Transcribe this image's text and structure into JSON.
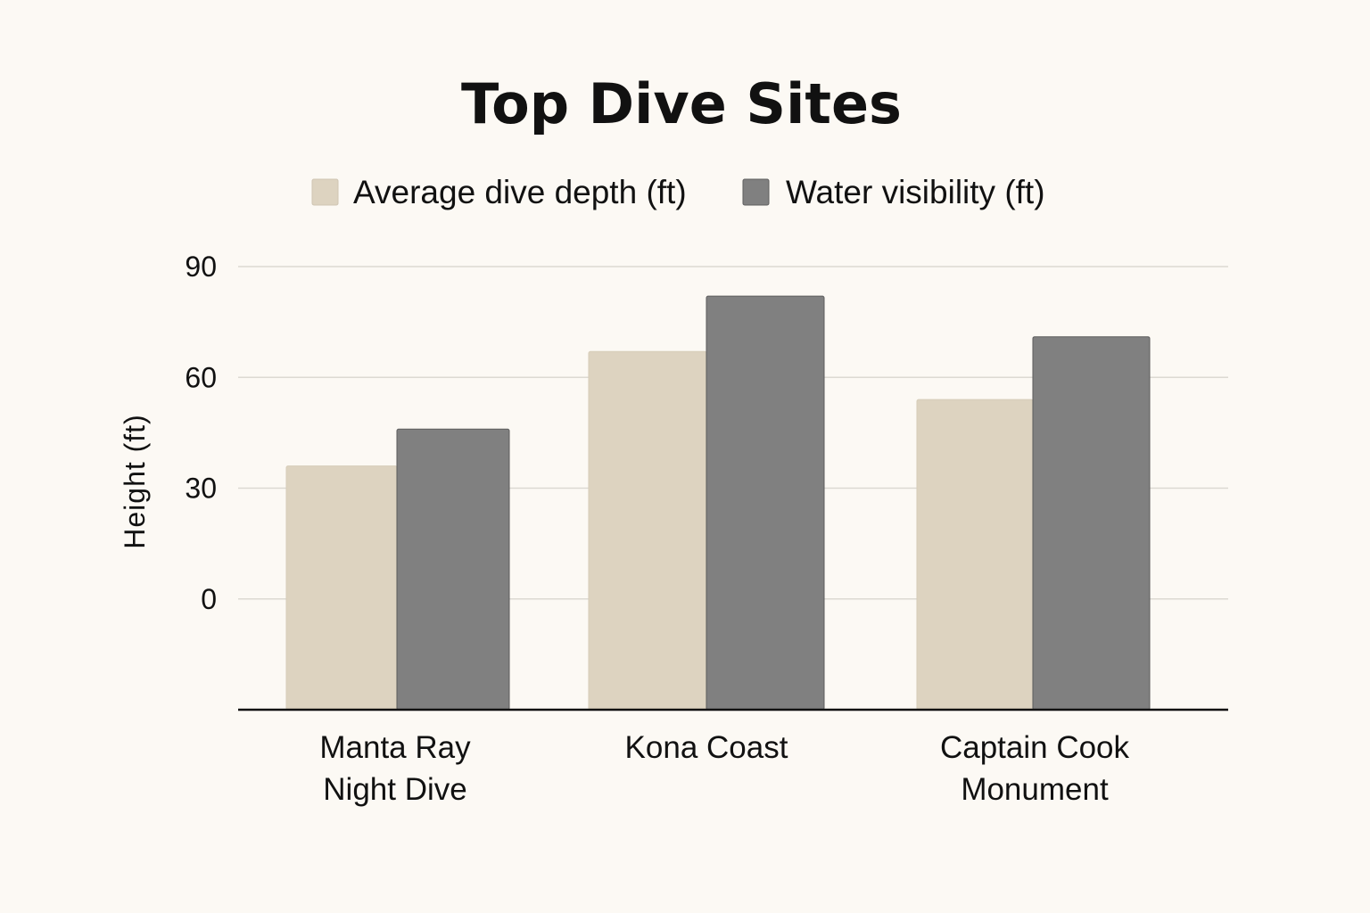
{
  "chart_data": {
    "type": "bar",
    "title": "Top Dive Sites",
    "ylabel": "Height (ft)",
    "xlabel": "",
    "categories": [
      [
        "Manta Ray",
        "Night Dive"
      ],
      [
        "Kona Coast"
      ],
      [
        "Captain Cook",
        "Monument"
      ]
    ],
    "series": [
      {
        "name": "Average dive depth (ft)",
        "color": "#ddd3c0",
        "values": [
          36,
          67,
          54
        ]
      },
      {
        "name": "Water visibility (ft)",
        "color": "#808080",
        "values": [
          46,
          82,
          71
        ]
      }
    ],
    "yticks": [
      0,
      30,
      60,
      90
    ],
    "ylim": [
      -30,
      90
    ],
    "grid": true,
    "legend_position": "top-center"
  }
}
